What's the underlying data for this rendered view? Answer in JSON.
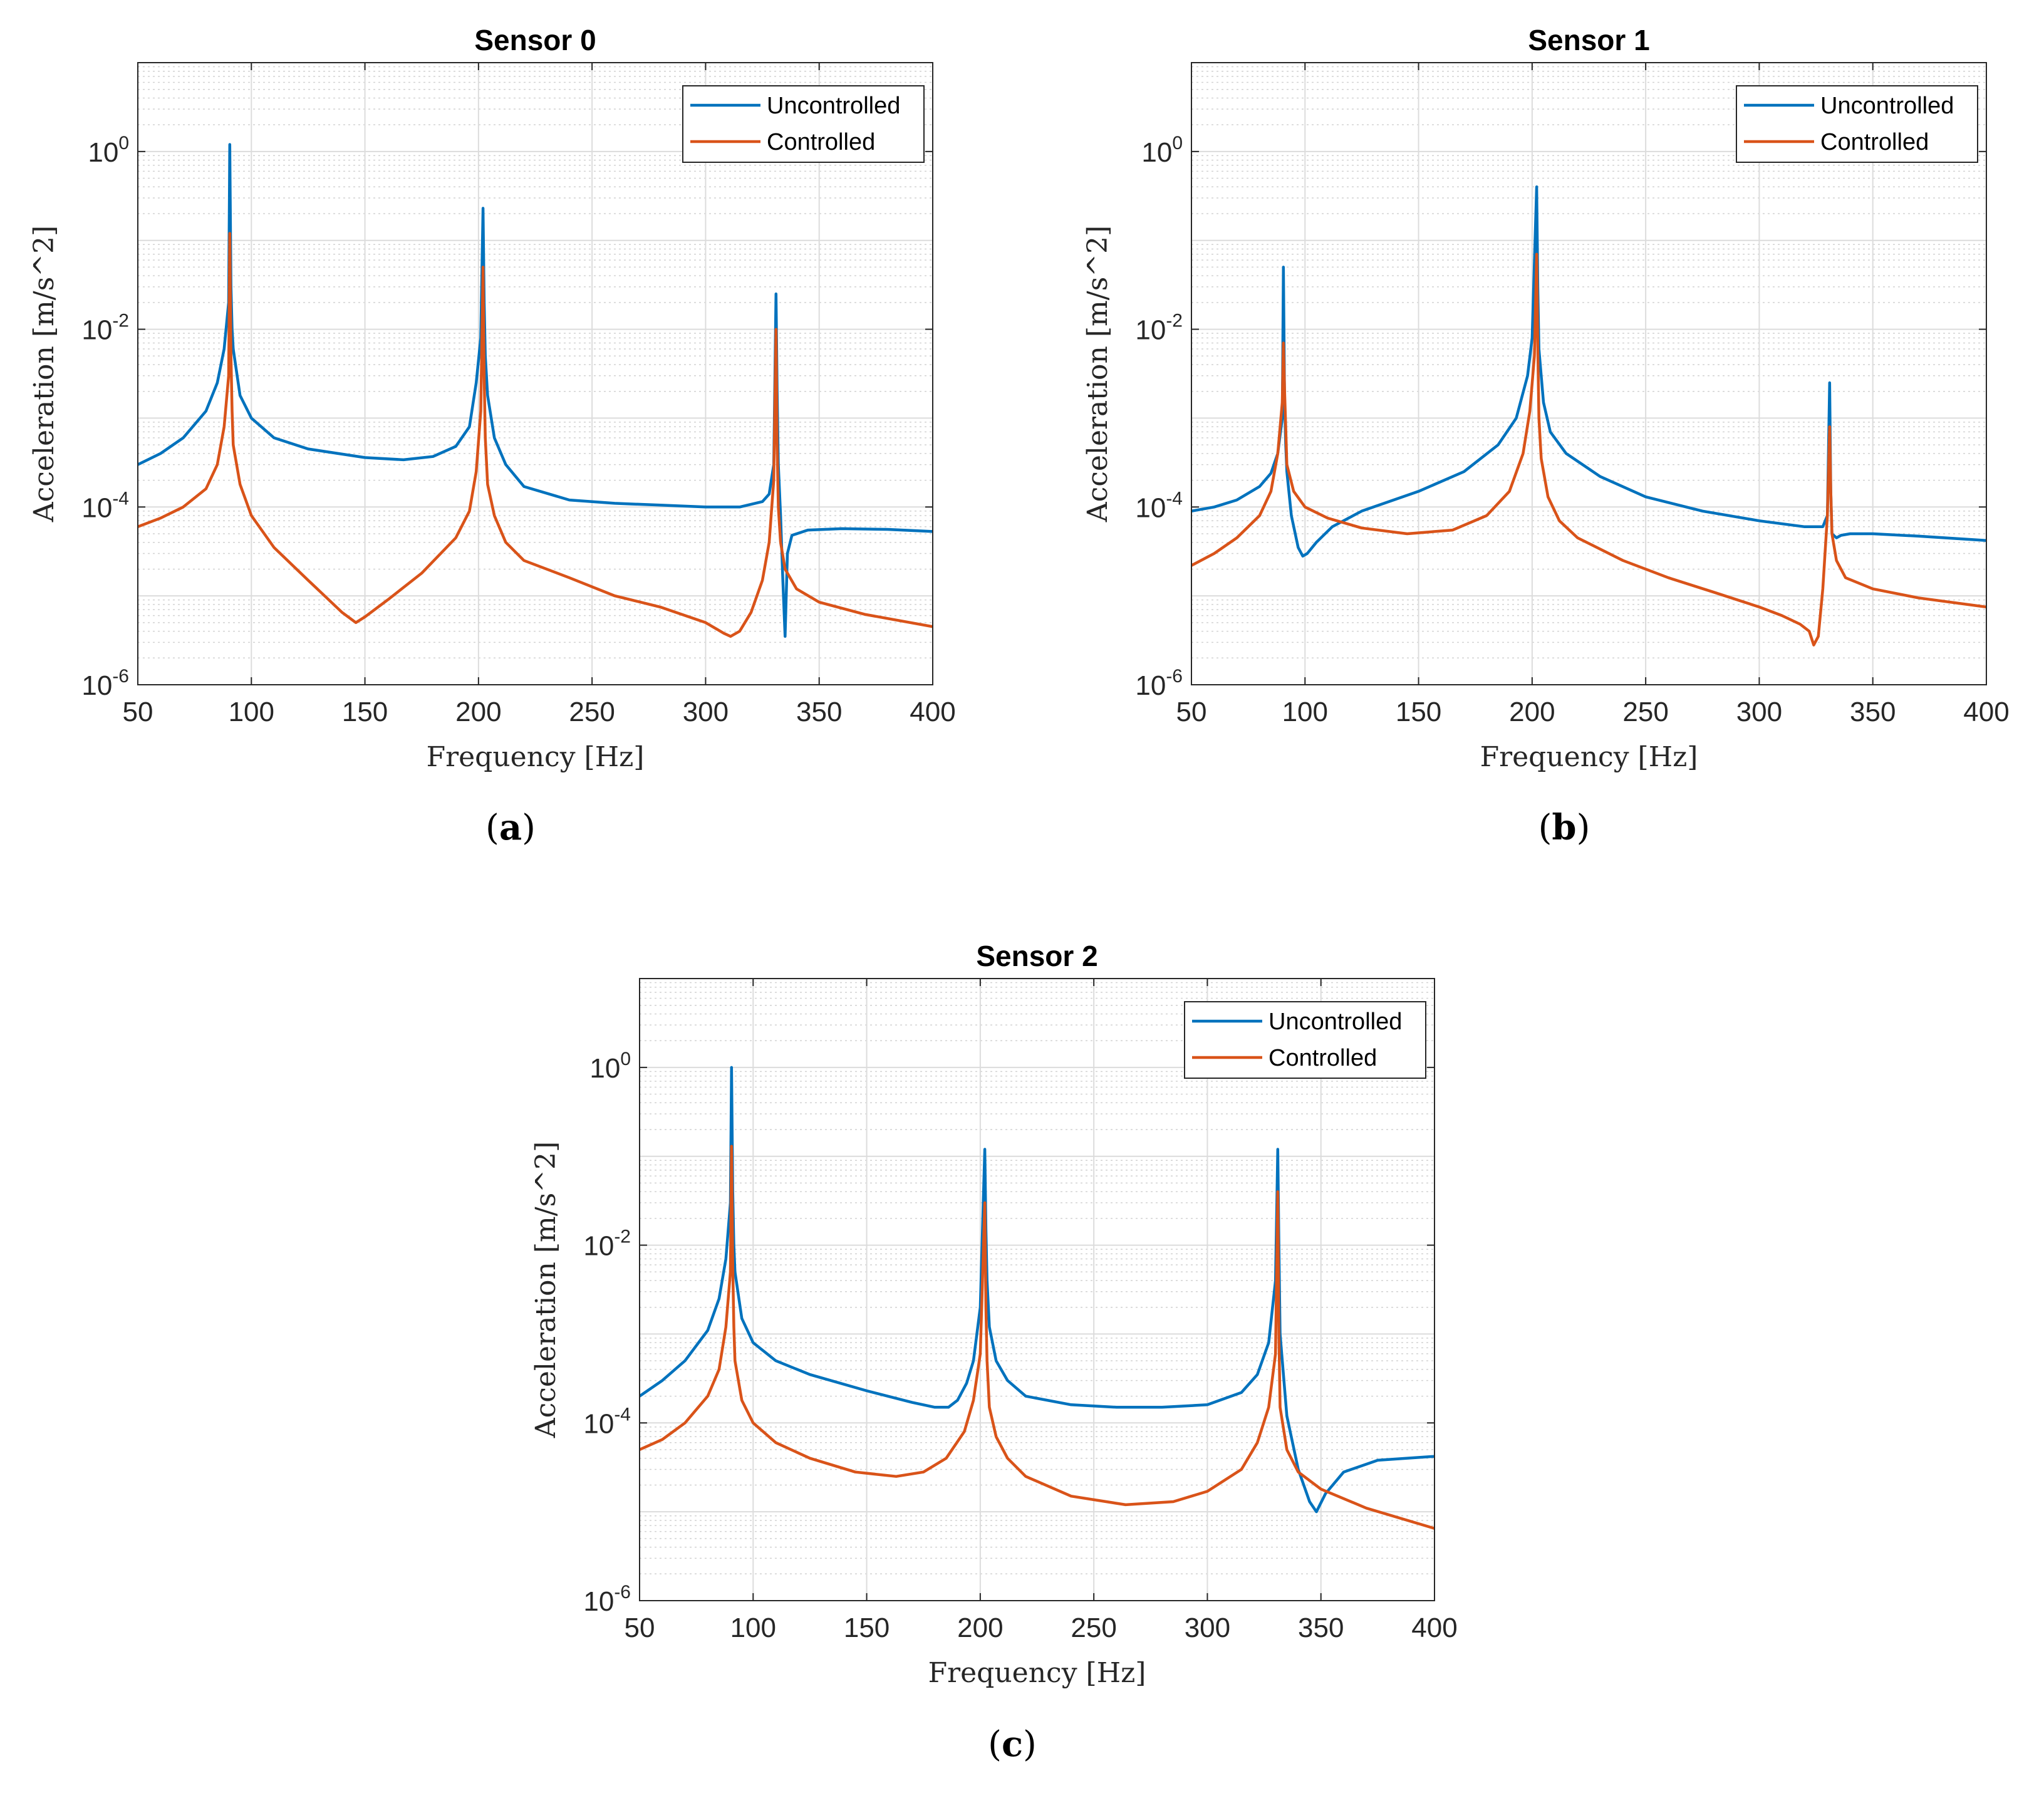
{
  "figure": {
    "labels": [
      {
        "open": "(",
        "letter": "a",
        "close": ")"
      },
      {
        "open": "(",
        "letter": "b",
        "close": ")"
      },
      {
        "open": "(",
        "letter": "c",
        "close": ")"
      }
    ]
  },
  "chart_data": [
    {
      "type": "line",
      "title": "Sensor 0",
      "xlabel": "Frequency [Hz]",
      "ylabel": "Acceleration [m/s^2]",
      "xlim": [
        50,
        400
      ],
      "ylim": [
        1e-06,
        10
      ],
      "yscale": "log",
      "grid": true,
      "legend_position": "top-right",
      "xticks": [
        50,
        100,
        150,
        200,
        250,
        300,
        350,
        400
      ],
      "yticks": [
        {
          "base": "10",
          "exp": "-6"
        },
        {
          "base": "10",
          "exp": "-4"
        },
        {
          "base": "10",
          "exp": "-2"
        },
        {
          "base": "10",
          "exp": "0"
        }
      ],
      "series": [
        {
          "name": "Uncontrolled",
          "color": "#0072bd",
          "x": [
            50,
            60,
            70,
            80,
            85,
            88,
            90,
            90.5,
            91,
            91.5,
            92,
            95,
            100,
            110,
            125,
            150,
            167,
            180,
            190,
            196,
            199,
            201,
            202,
            202.5,
            203,
            204,
            207,
            212,
            220,
            240,
            260,
            280,
            300,
            315,
            325,
            328,
            330,
            331,
            331.5,
            332,
            333,
            334,
            335,
            336,
            338,
            345,
            360,
            380,
            400
          ],
          "values": [
            0.0003,
            0.0004,
            0.0006,
            0.0012,
            0.0025,
            0.006,
            0.02,
            1.2,
            0.03,
            0.01,
            0.006,
            0.0018,
            0.001,
            0.0006,
            0.00045,
            0.00036,
            0.00034,
            0.00037,
            0.00048,
            0.0008,
            0.0025,
            0.008,
            0.23,
            0.02,
            0.005,
            0.0018,
            0.0006,
            0.0003,
            0.00017,
            0.00012,
            0.00011,
            0.000105,
            0.0001,
            0.0001,
            0.000115,
            0.00014,
            0.0003,
            0.025,
            0.002,
            0.0003,
            8e-05,
            1.5e-05,
            3.5e-06,
            3e-05,
            4.8e-05,
            5.5e-05,
            5.7e-05,
            5.6e-05,
            5.3e-05
          ]
        },
        {
          "name": "Controlled",
          "color": "#d95319",
          "x": [
            50,
            60,
            70,
            80,
            85,
            88,
            90,
            90.5,
            91,
            91.5,
            92,
            95,
            100,
            110,
            125,
            140,
            146,
            150,
            160,
            175,
            190,
            196,
            199,
            201,
            202,
            202.5,
            203,
            204,
            207,
            212,
            220,
            240,
            260,
            280,
            300,
            308,
            311,
            315,
            320,
            325,
            328,
            330,
            331,
            331.5,
            332,
            333,
            335,
            340,
            350,
            370,
            400
          ],
          "values": [
            6e-05,
            7.5e-05,
            0.0001,
            0.00016,
            0.0003,
            0.0008,
            0.003,
            0.12,
            0.005,
            0.0012,
            0.0005,
            0.00018,
            8e-05,
            3.5e-05,
            1.5e-05,
            6.5e-06,
            5e-06,
            5.8e-06,
            9e-06,
            1.8e-05,
            4.5e-05,
            9e-05,
            0.00025,
            0.0012,
            0.05,
            0.003,
            0.0006,
            0.00018,
            8e-05,
            4e-05,
            2.5e-05,
            1.6e-05,
            1e-05,
            7.5e-06,
            5e-06,
            3.8e-06,
            3.5e-06,
            4e-06,
            6.5e-06,
            1.5e-05,
            4e-05,
            0.0002,
            0.01,
            0.0005,
            0.0001,
            4e-05,
            2e-05,
            1.2e-05,
            8.5e-06,
            6.2e-06,
            4.5e-06
          ]
        }
      ]
    },
    {
      "type": "line",
      "title": "Sensor 1",
      "xlabel": "Frequency [Hz]",
      "ylabel": "Acceleration [m/s^2]",
      "xlim": [
        50,
        400
      ],
      "ylim": [
        1e-06,
        10
      ],
      "yscale": "log",
      "grid": true,
      "legend_position": "top-right",
      "xticks": [
        50,
        100,
        150,
        200,
        250,
        300,
        350,
        400
      ],
      "yticks": [
        {
          "base": "10",
          "exp": "-6"
        },
        {
          "base": "10",
          "exp": "-4"
        },
        {
          "base": "10",
          "exp": "-2"
        },
        {
          "base": "10",
          "exp": "0"
        }
      ],
      "series": [
        {
          "name": "Uncontrolled",
          "color": "#0072bd",
          "x": [
            50,
            60,
            70,
            80,
            85,
            88,
            90,
            90.5,
            91,
            91.5,
            92,
            94,
            97,
            99,
            101,
            105,
            112,
            125,
            150,
            170,
            185,
            193,
            198,
            200,
            202,
            202.5,
            203,
            205,
            208,
            215,
            230,
            250,
            275,
            300,
            320,
            328,
            330,
            331,
            331.5,
            332,
            334,
            336,
            340,
            350,
            370,
            400
          ],
          "values": [
            9e-05,
            0.0001,
            0.00012,
            0.00017,
            0.00024,
            0.0004,
            0.001,
            0.05,
            0.0015,
            0.0005,
            0.00025,
            8e-05,
            3.5e-05,
            2.8e-05,
            3e-05,
            4e-05,
            6e-05,
            9e-05,
            0.00015,
            0.00025,
            0.0005,
            0.001,
            0.003,
            0.008,
            0.4,
            0.03,
            0.006,
            0.0015,
            0.0007,
            0.0004,
            0.00022,
            0.00013,
            9e-05,
            7e-05,
            6e-05,
            6e-05,
            8e-05,
            0.0025,
            0.00015,
            5e-05,
            4.5e-05,
            4.8e-05,
            5e-05,
            5e-05,
            4.7e-05,
            4.2e-05
          ]
        },
        {
          "name": "Controlled",
          "color": "#d95319",
          "x": [
            50,
            60,
            70,
            80,
            85,
            88,
            90,
            90.5,
            91,
            91.5,
            92,
            95,
            100,
            110,
            125,
            145,
            165,
            180,
            190,
            196,
            199,
            201,
            202,
            202.5,
            203,
            204,
            207,
            212,
            220,
            240,
            260,
            280,
            300,
            310,
            318,
            322,
            324,
            326,
            328,
            330,
            331,
            331.5,
            332,
            334,
            338,
            350,
            370,
            400
          ],
          "values": [
            2.2e-05,
            3e-05,
            4.5e-05,
            8e-05,
            0.00015,
            0.0004,
            0.0015,
            0.007,
            0.002,
            0.0008,
            0.0003,
            0.00015,
            0.0001,
            7.5e-05,
            5.8e-05,
            5e-05,
            5.5e-05,
            8e-05,
            0.00015,
            0.0004,
            0.0012,
            0.005,
            0.07,
            0.006,
            0.001,
            0.00035,
            0.00013,
            7e-05,
            4.5e-05,
            2.5e-05,
            1.6e-05,
            1.1e-05,
            7.5e-06,
            6e-06,
            4.8e-06,
            4e-06,
            2.8e-06,
            3.5e-06,
            1.2e-05,
            8e-05,
            0.0008,
            0.00015,
            5e-05,
            2.5e-05,
            1.6e-05,
            1.2e-05,
            9.5e-06,
            7.5e-06
          ]
        }
      ]
    },
    {
      "type": "line",
      "title": "Sensor 2",
      "xlabel": "Frequency [Hz]",
      "ylabel": "Acceleration [m/s^2]",
      "xlim": [
        50,
        400
      ],
      "ylim": [
        1e-06,
        10
      ],
      "yscale": "log",
      "grid": true,
      "legend_position": "top-right",
      "xticks": [
        50,
        100,
        150,
        200,
        250,
        300,
        350,
        400
      ],
      "yticks": [
        {
          "base": "10",
          "exp": "-6"
        },
        {
          "base": "10",
          "exp": "-4"
        },
        {
          "base": "10",
          "exp": "-2"
        },
        {
          "base": "10",
          "exp": "0"
        }
      ],
      "series": [
        {
          "name": "Uncontrolled",
          "color": "#0072bd",
          "x": [
            50,
            60,
            70,
            80,
            85,
            88,
            90,
            90.5,
            91,
            91.5,
            92,
            95,
            100,
            110,
            125,
            150,
            170,
            180,
            186,
            190,
            194,
            197,
            200,
            202,
            202.5,
            203,
            204,
            207,
            212,
            220,
            240,
            260,
            280,
            300,
            315,
            322,
            327,
            330,
            331,
            331.5,
            332,
            335,
            340,
            345,
            348,
            352,
            360,
            375,
            400
          ],
          "values": [
            0.0002,
            0.0003,
            0.0005,
            0.0011,
            0.0025,
            0.007,
            0.03,
            1.0,
            0.04,
            0.01,
            0.005,
            0.0015,
            0.0008,
            0.0005,
            0.00035,
            0.00023,
            0.00017,
            0.00015,
            0.00015,
            0.00018,
            0.00028,
            0.0005,
            0.002,
            0.12,
            0.015,
            0.004,
            0.0012,
            0.0005,
            0.0003,
            0.0002,
            0.00016,
            0.00015,
            0.00015,
            0.00016,
            0.00022,
            0.00035,
            0.0008,
            0.004,
            0.12,
            0.01,
            0.001,
            0.00012,
            3e-05,
            1.3e-05,
            1e-05,
            1.6e-05,
            2.8e-05,
            3.8e-05,
            4.2e-05
          ]
        },
        {
          "name": "Controlled",
          "color": "#d95319",
          "x": [
            50,
            60,
            70,
            80,
            85,
            88,
            90,
            90.5,
            91,
            91.5,
            92,
            95,
            100,
            110,
            125,
            145,
            163,
            175,
            185,
            193,
            197,
            200,
            202,
            202.5,
            203,
            204,
            207,
            212,
            220,
            240,
            264,
            285,
            300,
            315,
            322,
            327,
            330,
            331,
            331.5,
            332,
            335,
            340,
            350,
            370,
            400
          ],
          "values": [
            5e-05,
            6.5e-05,
            0.0001,
            0.0002,
            0.0004,
            0.0012,
            0.005,
            0.13,
            0.006,
            0.0012,
            0.0005,
            0.00018,
            0.0001,
            6e-05,
            4e-05,
            2.8e-05,
            2.5e-05,
            2.8e-05,
            4e-05,
            8e-05,
            0.00018,
            0.0006,
            0.03,
            0.002,
            0.0005,
            0.00015,
            7e-05,
            4e-05,
            2.5e-05,
            1.5e-05,
            1.2e-05,
            1.3e-05,
            1.7e-05,
            3e-05,
            6e-05,
            0.00015,
            0.0006,
            0.04,
            0.001,
            0.00015,
            5e-05,
            2.8e-05,
            1.8e-05,
            1.1e-05,
            6.5e-06
          ]
        }
      ]
    }
  ]
}
